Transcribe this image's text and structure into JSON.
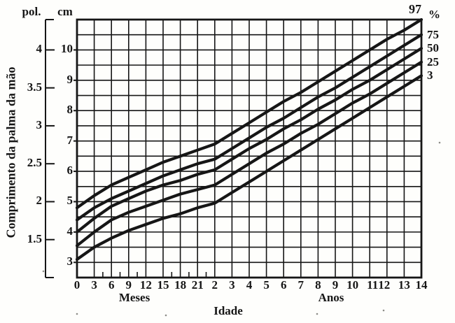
{
  "chart_data": {
    "type": "line",
    "title": "",
    "xlabel": "Idade",
    "ylabel": "Comprimento da palma da mão",
    "y_unit_left": "pol.",
    "y_unit_right": "cm",
    "pol_tick_labels": [
      "4",
      "3.5",
      "3",
      "2.5",
      "2",
      "1.5"
    ],
    "pol_tick_values": [
      4,
      3.5,
      3,
      2.5,
      2,
      1.5
    ],
    "cm_tick_labels": [
      "10",
      "9",
      "8",
      "7",
      "6",
      "5",
      "4",
      "3"
    ],
    "cm_tick_values": [
      10,
      9,
      8,
      7,
      6,
      5,
      4,
      3
    ],
    "cm_axis_range": [
      2.5,
      11
    ],
    "grid_step_cm": 0.5,
    "x_sections": [
      {
        "label": "Meses",
        "tick_labels": [
          "0",
          "3",
          "6",
          "9",
          "12",
          "15",
          "18",
          "21"
        ]
      },
      {
        "label": "Anos",
        "tick_labels": [
          "2",
          "3",
          "4",
          "5",
          "6",
          "7",
          "8",
          "9",
          "10",
          "11",
          "12",
          "13",
          "14"
        ]
      }
    ],
    "x_columns": [
      "0m",
      "3m",
      "6m",
      "9m",
      "12m",
      "15m",
      "18m",
      "21m",
      "2a",
      "3a",
      "4a",
      "5a",
      "6a",
      "7a",
      "8a",
      "9a",
      "10a",
      "11a",
      "12a",
      "13a",
      "14a"
    ],
    "percent_label": "%",
    "series": [
      {
        "name": "97",
        "values": [
          4.8,
          5.2,
          5.55,
          5.8,
          6.05,
          6.3,
          6.5,
          6.7,
          6.9,
          7.25,
          7.6,
          7.95,
          8.3,
          8.6,
          8.95,
          9.3,
          9.65,
          10.0,
          10.35,
          10.65,
          11.0
        ]
      },
      {
        "name": "75",
        "values": [
          4.4,
          4.8,
          5.1,
          5.35,
          5.6,
          5.85,
          6.05,
          6.25,
          6.4,
          6.75,
          7.1,
          7.45,
          7.75,
          8.1,
          8.45,
          8.75,
          9.1,
          9.45,
          9.8,
          10.15,
          10.5
        ]
      },
      {
        "name": "50",
        "values": [
          4.0,
          4.45,
          4.85,
          5.1,
          5.35,
          5.55,
          5.7,
          5.9,
          6.05,
          6.4,
          6.75,
          7.05,
          7.4,
          7.7,
          8.05,
          8.35,
          8.7,
          9.0,
          9.35,
          9.7,
          10.05
        ]
      },
      {
        "name": "25",
        "values": [
          3.55,
          4.0,
          4.4,
          4.65,
          4.85,
          5.05,
          5.25,
          5.4,
          5.55,
          5.9,
          6.25,
          6.6,
          6.9,
          7.25,
          7.55,
          7.9,
          8.25,
          8.55,
          8.9,
          9.25,
          9.6
        ]
      },
      {
        "name": "3",
        "values": [
          3.1,
          3.5,
          3.8,
          4.05,
          4.25,
          4.45,
          4.6,
          4.8,
          4.95,
          5.3,
          5.65,
          6.0,
          6.35,
          6.7,
          7.05,
          7.4,
          7.75,
          8.1,
          8.45,
          8.8,
          9.15
        ]
      }
    ],
    "ink_color": "#161616",
    "legend_position": "right",
    "grid": true
  }
}
